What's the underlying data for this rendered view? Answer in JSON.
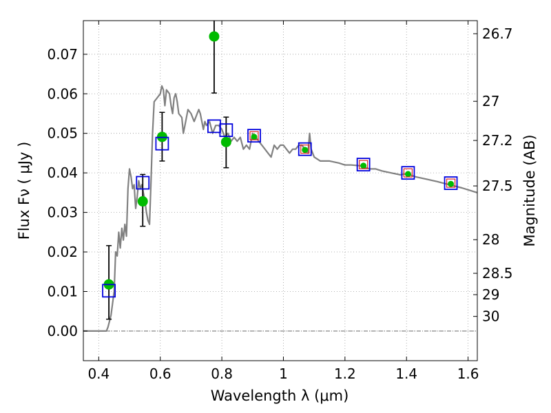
{
  "chart_data": {
    "type": "scatter",
    "xlabel": "Wavelength  λ (μm)",
    "ylabel": "Flux  Fν  ( μJy )",
    "y2label": "Magnitude (AB)",
    "xlim": [
      0.35,
      1.63
    ],
    "ylim": [
      -0.0075,
      0.0785
    ],
    "grid": true,
    "x_ticks": [
      {
        "v": 0.4,
        "label": "0.4"
      },
      {
        "v": 0.6,
        "label": "0.6"
      },
      {
        "v": 0.8,
        "label": "0.8"
      },
      {
        "v": 1.0,
        "label": "1"
      },
      {
        "v": 1.2,
        "label": "1.2"
      },
      {
        "v": 1.4,
        "label": "1.4"
      },
      {
        "v": 1.6,
        "label": "1.6"
      }
    ],
    "y_ticks": [
      {
        "v": 0.0,
        "label": "0.00"
      },
      {
        "v": 0.01,
        "label": "0.01"
      },
      {
        "v": 0.02,
        "label": "0.02"
      },
      {
        "v": 0.03,
        "label": "0.03"
      },
      {
        "v": 0.04,
        "label": "0.04"
      },
      {
        "v": 0.05,
        "label": "0.05"
      },
      {
        "v": 0.06,
        "label": "0.06"
      },
      {
        "v": 0.07,
        "label": "0.07"
      }
    ],
    "y2_ticks": [
      {
        "flux": 0.0752,
        "label": "26.7"
      },
      {
        "flux": 0.0581,
        "label": "27"
      },
      {
        "flux": 0.0482,
        "label": "27.2"
      },
      {
        "flux": 0.0367,
        "label": "27.5"
      },
      {
        "flux": 0.0231,
        "label": "28"
      },
      {
        "flux": 0.0146,
        "label": "28.5"
      },
      {
        "flux": 0.0092,
        "label": "29"
      },
      {
        "flux": 0.0037,
        "label": "30"
      }
    ],
    "colors": {
      "model": "#808080",
      "observed": "#00bb00",
      "model_photometry": "#0000dd",
      "model_photometry_inner": "#dd2222",
      "axis": "#000000",
      "grid": "#999999"
    },
    "series": [
      {
        "name": "model_spectrum",
        "style": "line",
        "points": [
          [
            0.35,
            0.0
          ],
          [
            0.425,
            0.0
          ],
          [
            0.43,
            0.001
          ],
          [
            0.44,
            0.004
          ],
          [
            0.45,
            0.01
          ],
          [
            0.455,
            0.02
          ],
          [
            0.46,
            0.019
          ],
          [
            0.465,
            0.025
          ],
          [
            0.47,
            0.021
          ],
          [
            0.475,
            0.026
          ],
          [
            0.48,
            0.023
          ],
          [
            0.485,
            0.027
          ],
          [
            0.49,
            0.024
          ],
          [
            0.495,
            0.036
          ],
          [
            0.5,
            0.041
          ],
          [
            0.505,
            0.039
          ],
          [
            0.51,
            0.036
          ],
          [
            0.515,
            0.037
          ],
          [
            0.52,
            0.031
          ],
          [
            0.525,
            0.034
          ],
          [
            0.53,
            0.038
          ],
          [
            0.535,
            0.036
          ],
          [
            0.54,
            0.037
          ],
          [
            0.545,
            0.035
          ],
          [
            0.55,
            0.033
          ],
          [
            0.555,
            0.03
          ],
          [
            0.56,
            0.028
          ],
          [
            0.565,
            0.027
          ],
          [
            0.57,
            0.038
          ],
          [
            0.575,
            0.05
          ],
          [
            0.58,
            0.058
          ],
          [
            0.59,
            0.059
          ],
          [
            0.6,
            0.06
          ],
          [
            0.605,
            0.062
          ],
          [
            0.61,
            0.061
          ],
          [
            0.615,
            0.057
          ],
          [
            0.62,
            0.061
          ],
          [
            0.63,
            0.06
          ],
          [
            0.635,
            0.057
          ],
          [
            0.64,
            0.055
          ],
          [
            0.645,
            0.059
          ],
          [
            0.65,
            0.06
          ],
          [
            0.655,
            0.058
          ],
          [
            0.66,
            0.055
          ],
          [
            0.67,
            0.054
          ],
          [
            0.675,
            0.05
          ],
          [
            0.68,
            0.052
          ],
          [
            0.685,
            0.054
          ],
          [
            0.69,
            0.056
          ],
          [
            0.7,
            0.055
          ],
          [
            0.705,
            0.054
          ],
          [
            0.71,
            0.053
          ],
          [
            0.72,
            0.055
          ],
          [
            0.725,
            0.056
          ],
          [
            0.73,
            0.055
          ],
          [
            0.74,
            0.051
          ],
          [
            0.745,
            0.053
          ],
          [
            0.75,
            0.052
          ],
          [
            0.76,
            0.053
          ],
          [
            0.77,
            0.05
          ],
          [
            0.78,
            0.052
          ],
          [
            0.79,
            0.052
          ],
          [
            0.8,
            0.051
          ],
          [
            0.81,
            0.049
          ],
          [
            0.82,
            0.05
          ],
          [
            0.83,
            0.048
          ],
          [
            0.84,
            0.049
          ],
          [
            0.85,
            0.048
          ],
          [
            0.86,
            0.049
          ],
          [
            0.87,
            0.046
          ],
          [
            0.88,
            0.047
          ],
          [
            0.89,
            0.046
          ],
          [
            0.9,
            0.05
          ],
          [
            0.91,
            0.049
          ],
          [
            0.92,
            0.048
          ],
          [
            0.93,
            0.047
          ],
          [
            0.94,
            0.046
          ],
          [
            0.95,
            0.045
          ],
          [
            0.96,
            0.044
          ],
          [
            0.97,
            0.047
          ],
          [
            0.98,
            0.046
          ],
          [
            0.99,
            0.047
          ],
          [
            1.0,
            0.047
          ],
          [
            1.01,
            0.046
          ],
          [
            1.02,
            0.045
          ],
          [
            1.03,
            0.046
          ],
          [
            1.04,
            0.046
          ],
          [
            1.05,
            0.047
          ],
          [
            1.06,
            0.047
          ],
          [
            1.07,
            0.046
          ],
          [
            1.08,
            0.045
          ],
          [
            1.085,
            0.05
          ],
          [
            1.09,
            0.046
          ],
          [
            1.1,
            0.044
          ],
          [
            1.12,
            0.043
          ],
          [
            1.15,
            0.043
          ],
          [
            1.18,
            0.0425
          ],
          [
            1.2,
            0.042
          ],
          [
            1.22,
            0.042
          ],
          [
            1.25,
            0.0418
          ],
          [
            1.28,
            0.041
          ],
          [
            1.3,
            0.041
          ],
          [
            1.32,
            0.0405
          ],
          [
            1.35,
            0.04
          ],
          [
            1.38,
            0.0395
          ],
          [
            1.4,
            0.0398
          ],
          [
            1.43,
            0.039
          ],
          [
            1.46,
            0.0385
          ],
          [
            1.5,
            0.0378
          ],
          [
            1.54,
            0.037
          ],
          [
            1.58,
            0.0362
          ],
          [
            1.63,
            0.035
          ]
        ]
      },
      {
        "name": "observed_flux",
        "style": "marker-circle-errorbar",
        "points": [
          {
            "x": 0.433,
            "y": 0.0118,
            "err_lo": 0.0088,
            "err_hi": 0.0098
          },
          {
            "x": 0.543,
            "y": 0.0328,
            "err_lo": 0.0063,
            "err_hi": 0.0068
          },
          {
            "x": 0.606,
            "y": 0.0491,
            "err_lo": 0.0061,
            "err_hi": 0.0062
          },
          {
            "x": 0.775,
            "y": 0.0745,
            "err_lo": 0.0143,
            "err_hi": 0.0058
          },
          {
            "x": 0.814,
            "y": 0.0478,
            "err_lo": 0.0065,
            "err_hi": 0.0063
          },
          {
            "x": 0.905,
            "y": 0.0491
          },
          {
            "x": 1.07,
            "y": 0.0458
          },
          {
            "x": 1.26,
            "y": 0.0418
          },
          {
            "x": 1.405,
            "y": 0.0397
          },
          {
            "x": 1.544,
            "y": 0.0372
          }
        ]
      },
      {
        "name": "model_photometry",
        "style": "marker-square-open",
        "points": [
          {
            "x": 0.433,
            "y": 0.0102
          },
          {
            "x": 0.543,
            "y": 0.0375
          },
          {
            "x": 0.606,
            "y": 0.0474
          },
          {
            "x": 0.775,
            "y": 0.0518
          },
          {
            "x": 0.814,
            "y": 0.0508
          },
          {
            "x": 0.905,
            "y": 0.0494
          },
          {
            "x": 1.07,
            "y": 0.046
          },
          {
            "x": 1.26,
            "y": 0.0421
          },
          {
            "x": 1.405,
            "y": 0.04
          },
          {
            "x": 1.544,
            "y": 0.0374
          }
        ]
      }
    ]
  }
}
